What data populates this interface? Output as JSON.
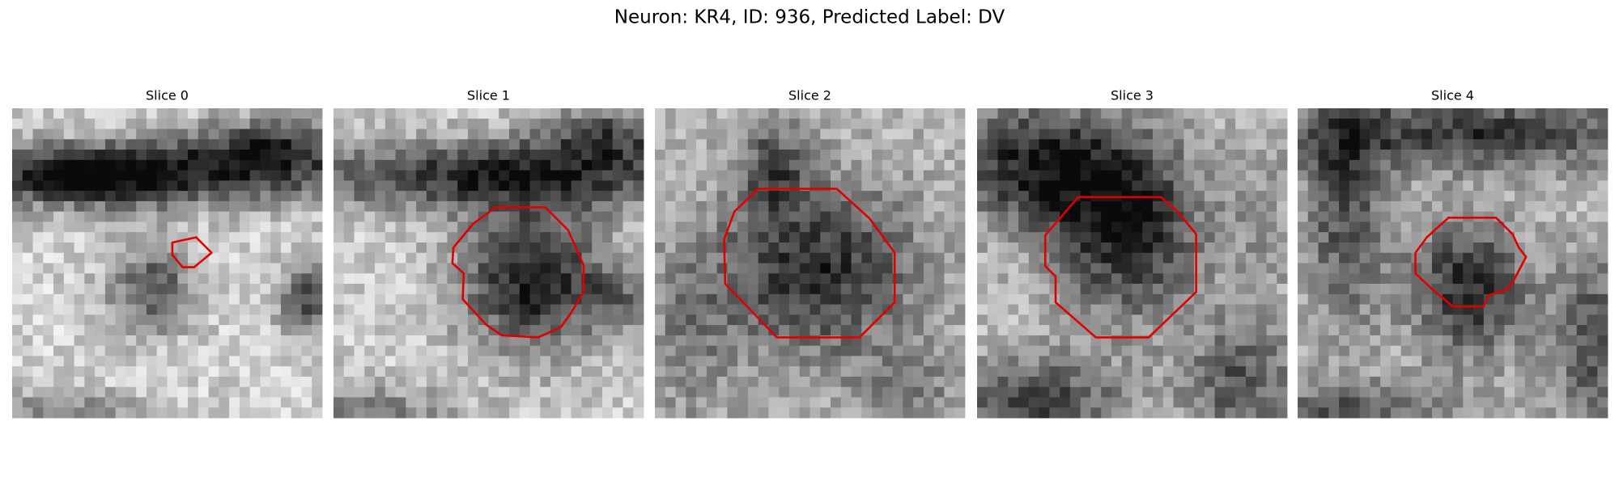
{
  "title": "Neuron: KR4, ID: 936, Predicted Label: DV",
  "panels": [
    {
      "title": "Slice 0"
    },
    {
      "title": "Slice 1"
    },
    {
      "title": "Slice 2"
    },
    {
      "title": "Slice 3"
    },
    {
      "title": "Slice 4"
    }
  ]
}
